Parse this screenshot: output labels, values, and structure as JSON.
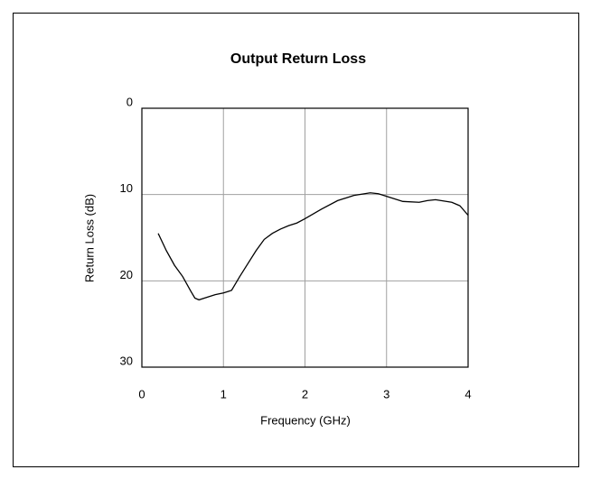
{
  "chart_data": {
    "type": "line",
    "title": "Output Return Loss",
    "x_label": "Frequency (GHz)",
    "y_label": "Return Loss (dB)",
    "x": [
      0.2,
      0.3,
      0.4,
      0.5,
      0.6,
      0.65,
      0.7,
      0.8,
      0.9,
      1.0,
      1.1,
      1.2,
      1.3,
      1.4,
      1.5,
      1.6,
      1.7,
      1.8,
      1.9,
      2.0,
      2.2,
      2.4,
      2.6,
      2.8,
      2.9,
      3.0,
      3.2,
      3.4,
      3.5,
      3.6,
      3.8,
      3.9,
      4.0
    ],
    "series": [
      {
        "color": "#000000",
        "values": [
          14.5,
          16.5,
          18.2,
          19.5,
          21.2,
          22.0,
          22.2,
          21.9,
          21.6,
          21.4,
          21.1,
          19.5,
          18.0,
          16.5,
          15.2,
          14.5,
          14.0,
          13.6,
          13.3,
          12.8,
          11.7,
          10.7,
          10.1,
          9.8,
          9.9,
          10.2,
          10.8,
          10.9,
          10.7,
          10.6,
          10.9,
          11.3,
          12.4
        ]
      }
    ],
    "xlim": [
      0,
      4
    ],
    "xticks": [
      0,
      1,
      2,
      3,
      4
    ],
    "ylim": [
      30,
      0
    ],
    "yticks": [
      0,
      10,
      20,
      30
    ],
    "grid": true,
    "grid_color": "#a0a0a0"
  }
}
